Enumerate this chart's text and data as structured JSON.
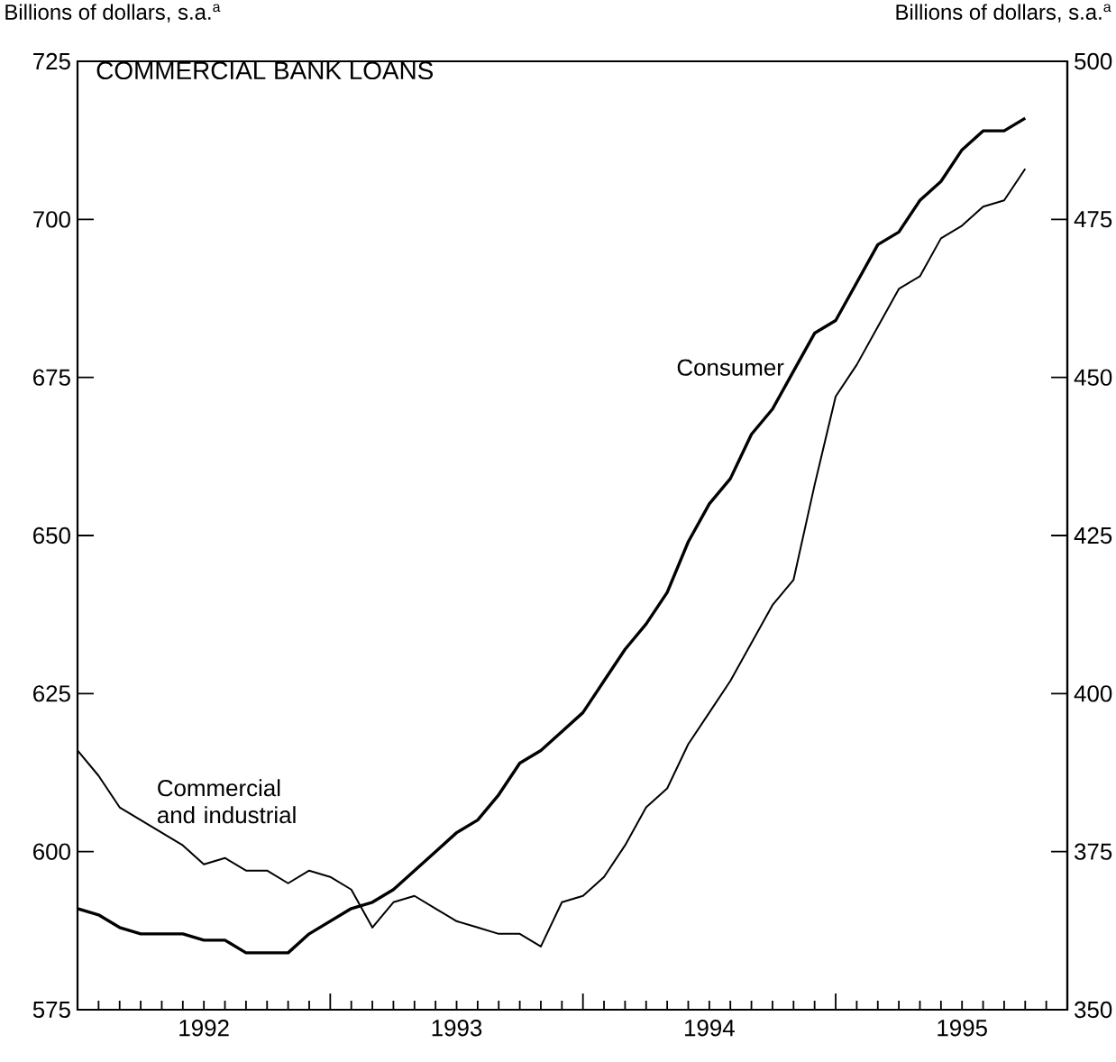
{
  "chart_data": {
    "type": "line",
    "title": "COMMERCIAL BANK LOANS",
    "ylabel": "Billions of dollars, s.a.$^{a}$",
    "y2label": "Billions of dollars, s.a.$^{a}$",
    "x": [
      "1992-01",
      "1992-02",
      "1992-03",
      "1992-04",
      "1992-05",
      "1992-06",
      "1992-07",
      "1992-08",
      "1992-09",
      "1992-10",
      "1992-11",
      "1992-12",
      "1993-01",
      "1993-02",
      "1993-03",
      "1993-04",
      "1993-05",
      "1993-06",
      "1993-07",
      "1993-08",
      "1993-09",
      "1993-10",
      "1993-11",
      "1993-12",
      "1994-01",
      "1994-02",
      "1994-03",
      "1994-04",
      "1994-05",
      "1994-06",
      "1994-07",
      "1994-08",
      "1994-09",
      "1994-10",
      "1994-11",
      "1994-12",
      "1995-01",
      "1995-02",
      "1995-03",
      "1995-04",
      "1995-05",
      "1995-06",
      "1995-07",
      "1995-08",
      "1995-09",
      "1995-10"
    ],
    "series": [
      {
        "name": "Commercial and industrial",
        "color": "#000000",
        "axis": "y",
        "values": [
          616,
          612,
          607,
          605,
          603,
          601,
          598,
          599,
          597,
          597,
          595,
          597,
          596,
          594,
          588,
          592,
          593,
          591,
          589,
          588,
          587,
          587,
          585,
          592,
          593,
          596,
          601,
          607,
          610,
          617,
          622,
          627,
          633,
          639,
          643,
          658,
          672,
          677,
          683,
          689,
          691,
          697,
          699,
          702,
          703,
          708
        ]
      },
      {
        "name": "Consumer",
        "color": "#000000",
        "axis": "y2",
        "values": [
          366,
          365,
          363,
          362,
          362,
          362,
          361,
          361,
          359,
          359,
          359,
          362,
          364,
          366,
          367,
          369,
          372,
          375,
          378,
          380,
          384,
          389,
          391,
          394,
          397,
          402,
          407,
          411,
          416,
          424,
          430,
          434,
          441,
          445,
          451,
          457,
          459,
          465,
          471,
          473,
          478,
          481,
          486,
          489,
          489,
          491
        ]
      }
    ],
    "xlim": [
      "1992-01",
      "1995-12"
    ],
    "xticks": [
      {
        "value": "1992-07",
        "label": "1992"
      },
      {
        "value": "1993-01",
        "label": null
      },
      {
        "value": "1993-07",
        "label": "1993"
      },
      {
        "value": "1994-01",
        "label": null
      },
      {
        "value": "1994-07",
        "label": "1994"
      },
      {
        "value": "1995-01",
        "label": null
      },
      {
        "value": "1995-07",
        "label": "1995"
      }
    ],
    "ylim": [
      575,
      725
    ],
    "yticks": [
      575,
      600,
      625,
      650,
      675,
      700,
      725
    ],
    "y2lim": [
      350,
      500
    ],
    "y2ticks": [
      350,
      375,
      400,
      425,
      450,
      475,
      500
    ],
    "line_style": "solid"
  }
}
